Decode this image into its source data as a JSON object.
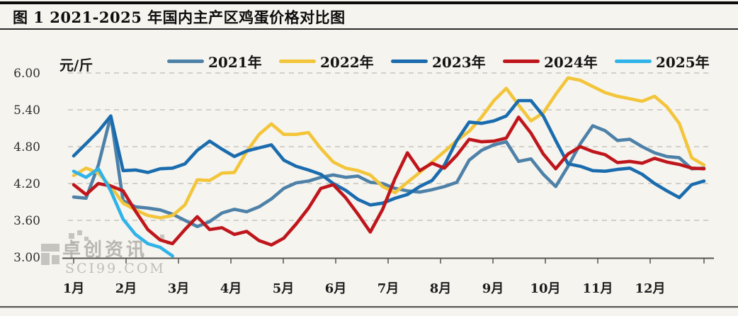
{
  "figure": {
    "title": "图 1 2021-2025 年国内主产区鸡蛋价格对比图"
  },
  "y_axis": {
    "unit": "元/斤",
    "ticks": [
      "6.00",
      "5.40",
      "4.80",
      "4.20",
      "3.60",
      "3.00"
    ]
  },
  "x_axis": {
    "ticks": [
      "1月",
      "2月",
      "3月",
      "4月",
      "5月",
      "6月",
      "7月",
      "8月",
      "9月",
      "10月",
      "11月",
      "12月"
    ]
  },
  "legend": {
    "items": [
      {
        "label": "2021年",
        "color": "#4e81a8"
      },
      {
        "label": "2022年",
        "color": "#f3c53a"
      },
      {
        "label": "2023年",
        "color": "#1a6cae"
      },
      {
        "label": "2024年",
        "color": "#bf161c"
      },
      {
        "label": "2025年",
        "color": "#2fb3e8"
      }
    ]
  },
  "watermark": {
    "line1": "卓创资讯",
    "line2": "SCI99.COM"
  },
  "chart_data": {
    "type": "line",
    "title": "图 1 2021-2025 年国内主产区鸡蛋价格对比图",
    "ylabel": "元/斤",
    "xlabel": "",
    "ylim": [
      3.0,
      6.0
    ],
    "grid": true,
    "legend_position": "top",
    "x_unit": "week-of-year (1-52)",
    "x_tick_labels": [
      "1月",
      "2月",
      "3月",
      "4月",
      "5月",
      "6月",
      "7月",
      "8月",
      "9月",
      "10月",
      "11月",
      "12月"
    ],
    "series": [
      {
        "name": "2021年",
        "color": "#4e81a8",
        "values": [
          3.98,
          3.96,
          4.5,
          5.3,
          3.92,
          3.82,
          3.8,
          3.77,
          3.7,
          3.6,
          3.5,
          3.58,
          3.72,
          3.78,
          3.74,
          3.82,
          3.95,
          4.12,
          4.21,
          4.24,
          4.3,
          4.34,
          4.3,
          4.32,
          4.22,
          4.2,
          4.12,
          4.08,
          4.06,
          4.1,
          4.15,
          4.22,
          4.58,
          4.74,
          4.83,
          4.88,
          4.56,
          4.6,
          4.35,
          4.15,
          4.48,
          4.85,
          5.14,
          5.06,
          4.9,
          4.92,
          4.8,
          4.7,
          4.64,
          4.62,
          4.44,
          4.45
        ]
      },
      {
        "name": "2022年",
        "color": "#f3c53a",
        "values": [
          4.33,
          4.45,
          4.37,
          4.15,
          3.88,
          3.77,
          3.68,
          3.64,
          3.68,
          3.85,
          4.26,
          4.25,
          4.37,
          4.38,
          4.72,
          5.0,
          5.17,
          5.0,
          5.0,
          5.03,
          4.77,
          4.55,
          4.45,
          4.41,
          4.34,
          4.15,
          4.05,
          4.22,
          4.38,
          4.55,
          4.72,
          4.9,
          5.05,
          5.28,
          5.55,
          5.75,
          5.48,
          5.22,
          5.35,
          5.65,
          5.92,
          5.88,
          5.78,
          5.68,
          5.62,
          5.58,
          5.54,
          5.62,
          5.45,
          5.18,
          4.62,
          4.5
        ]
      },
      {
        "name": "2023年",
        "color": "#1a6cae",
        "values": [
          4.65,
          4.85,
          5.05,
          5.3,
          4.41,
          4.42,
          4.38,
          4.44,
          4.45,
          4.52,
          4.74,
          4.89,
          4.76,
          4.64,
          4.73,
          4.78,
          4.83,
          4.58,
          4.48,
          4.42,
          4.35,
          4.2,
          4.09,
          3.94,
          3.85,
          3.88,
          3.96,
          4.02,
          4.15,
          4.25,
          4.5,
          4.9,
          5.2,
          5.18,
          5.22,
          5.3,
          5.55,
          5.55,
          5.3,
          4.9,
          4.52,
          4.48,
          4.41,
          4.4,
          4.43,
          4.45,
          4.35,
          4.2,
          4.08,
          3.97,
          4.18,
          4.24
        ]
      },
      {
        "name": "2024年",
        "color": "#bf161c",
        "values": [
          4.18,
          4.02,
          4.2,
          4.16,
          4.08,
          3.75,
          3.45,
          3.28,
          3.22,
          3.45,
          3.66,
          3.45,
          3.48,
          3.37,
          3.42,
          3.27,
          3.2,
          3.31,
          3.54,
          3.8,
          4.12,
          4.18,
          3.97,
          3.7,
          3.41,
          3.78,
          4.28,
          4.7,
          4.41,
          4.53,
          4.45,
          4.66,
          4.92,
          4.88,
          4.89,
          4.94,
          5.28,
          5.02,
          4.68,
          4.44,
          4.68,
          4.8,
          4.72,
          4.67,
          4.54,
          4.56,
          4.53,
          4.61,
          4.55,
          4.51,
          4.45,
          4.44
        ]
      },
      {
        "name": "2025年",
        "color": "#2fb3e8",
        "values": [
          4.4,
          4.3,
          4.44,
          4.08,
          3.62,
          3.37,
          3.22,
          3.16,
          3.02
        ]
      }
    ]
  }
}
